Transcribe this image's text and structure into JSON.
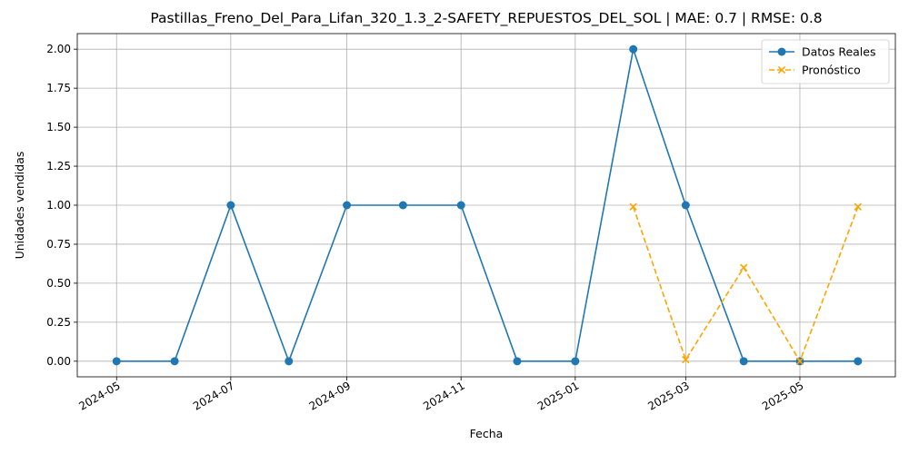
{
  "chart_data": {
    "type": "line",
    "title": "Pastillas_Freno_Del_Para_Lifan_320_1.3_2-SAFETY_REPUESTOS_DEL_SOL | MAE: 0.7 | RMSE: 0.8",
    "xlabel": "Fecha",
    "ylabel": "Unidades vendidas",
    "ylim": [
      -0.1,
      2.1
    ],
    "xlim": [
      "2024-04-10",
      "2025-06-21"
    ],
    "grid": true,
    "legend": "top-right",
    "x_ticks": [
      "2024-05",
      "2024-07",
      "2024-09",
      "2024-11",
      "2025-01",
      "2025-03",
      "2025-05"
    ],
    "y_ticks": [
      "0.00",
      "0.25",
      "0.50",
      "0.75",
      "1.00",
      "1.25",
      "1.50",
      "1.75",
      "2.00"
    ],
    "series": [
      {
        "name": "Datos Reales",
        "color": "#1f77b4",
        "style": "solid",
        "marker": "circle",
        "x": [
          "2024-05-01",
          "2024-06-01",
          "2024-07-01",
          "2024-08-01",
          "2024-09-01",
          "2024-10-01",
          "2024-11-01",
          "2024-12-01",
          "2025-01-01",
          "2025-02-01",
          "2025-03-01",
          "2025-04-01",
          "2025-05-01",
          "2025-06-01"
        ],
        "values": [
          0,
          0,
          1,
          0,
          1,
          1,
          1,
          0,
          0,
          2,
          1,
          0,
          0,
          0
        ]
      },
      {
        "name": "Pronóstico",
        "color": "#ffa500",
        "style": "dashed",
        "marker": "x",
        "x": [
          "2025-02-01",
          "2025-03-01",
          "2025-04-01",
          "2025-05-01",
          "2025-06-01"
        ],
        "values": [
          0.99,
          0.01,
          0.6,
          0.0,
          0.99
        ]
      }
    ]
  }
}
